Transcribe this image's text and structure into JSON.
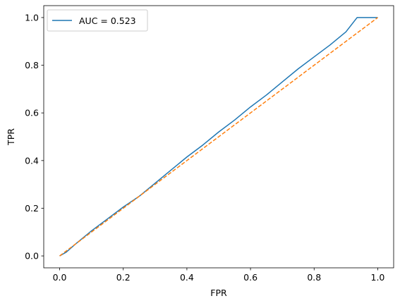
{
  "chart_data": {
    "type": "line",
    "xlabel": "FPR",
    "ylabel": "TPR",
    "xlim": [
      -0.05,
      1.05
    ],
    "ylim": [
      -0.05,
      1.05
    ],
    "xticks": [
      0.0,
      0.2,
      0.4,
      0.6,
      0.8,
      1.0
    ],
    "yticks": [
      0.0,
      0.2,
      0.4,
      0.6,
      0.8,
      1.0
    ],
    "xtick_labels": [
      "0.0",
      "0.2",
      "0.4",
      "0.6",
      "0.8",
      "1.0"
    ],
    "ytick_labels": [
      "0.0",
      "0.2",
      "0.4",
      "0.6",
      "0.8",
      "1.0"
    ],
    "grid": false,
    "legend_position": "top-left",
    "series": [
      {
        "name": "AUC = 0.523",
        "color": "#1f77b4",
        "style": "solid",
        "x": [
          0.0,
          0.02,
          0.05,
          0.1,
          0.15,
          0.2,
          0.25,
          0.3,
          0.35,
          0.4,
          0.45,
          0.5,
          0.55,
          0.6,
          0.65,
          0.7,
          0.75,
          0.8,
          0.85,
          0.9,
          0.935,
          1.0
        ],
        "y": [
          0.0,
          0.015,
          0.05,
          0.105,
          0.155,
          0.205,
          0.25,
          0.305,
          0.36,
          0.415,
          0.465,
          0.52,
          0.57,
          0.625,
          0.675,
          0.73,
          0.785,
          0.835,
          0.885,
          0.94,
          1.0,
          1.0
        ]
      },
      {
        "name": "",
        "color": "#ff7f0e",
        "style": "dashed",
        "x": [
          0.0,
          1.0
        ],
        "y": [
          0.0,
          1.0
        ]
      }
    ]
  }
}
